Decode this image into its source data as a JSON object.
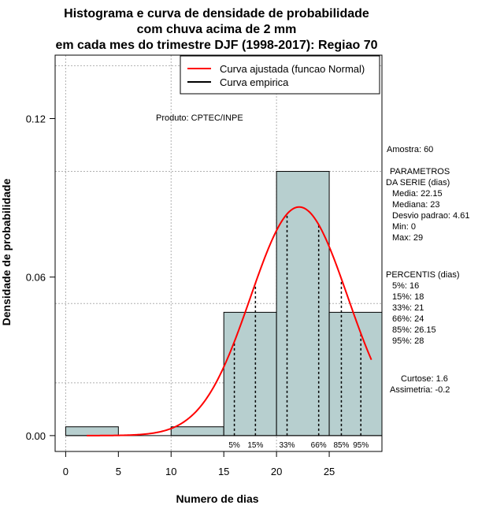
{
  "chart_data": {
    "type": "bar",
    "title": [
      "Histograma e curva de densidade de probabilidade",
      "com chuva acima de 2 mm",
      "em cada mes do trimestre DJF (1998-2017): Regiao 70"
    ],
    "xlabel": "Numero de dias",
    "ylabel": "Densidade de probabilidade",
    "xlim": [
      -1,
      30
    ],
    "ylim": [
      -0.006,
      0.144
    ],
    "xticks": [
      0,
      5,
      10,
      15,
      20,
      25
    ],
    "yticks": [
      0.0,
      0.06,
      0.12
    ],
    "ytick_labels": [
      "0.00",
      "0.06",
      "0.12"
    ],
    "grid_y": [
      0.02,
      0.05,
      0.1,
      0.14
    ],
    "grid_x": [
      0,
      10,
      20,
      30
    ],
    "bins": [
      {
        "x0": 0,
        "x1": 5,
        "density": 0.003333
      },
      {
        "x0": 5,
        "x1": 10,
        "density": 0.0
      },
      {
        "x0": 10,
        "x1": 15,
        "density": 0.003333
      },
      {
        "x0": 15,
        "x1": 20,
        "density": 0.046667
      },
      {
        "x0": 20,
        "x1": 25,
        "density": 0.1
      },
      {
        "x0": 25,
        "x1": 30,
        "density": 0.046667
      }
    ],
    "normal_curve": {
      "mean": 22.15,
      "sd": 4.61,
      "x_from": 2,
      "x_to": 29
    },
    "percentile_lines": [
      {
        "x": 16,
        "label": "5%"
      },
      {
        "x": 18,
        "label": "15%"
      },
      {
        "x": 21,
        "label": "33%"
      },
      {
        "x": 24,
        "label": "66%"
      },
      {
        "x": 26.15,
        "label": "85%"
      },
      {
        "x": 28,
        "label": "95%"
      }
    ],
    "legend": [
      {
        "label": "Curva ajustada (funcao Normal)",
        "color": "#ff0000"
      },
      {
        "label": "Curva empirica",
        "color": "#000000"
      }
    ],
    "legend_position": "top-right"
  },
  "annotation": "Produto: CPTEC/INPE",
  "stats": {
    "amostra": "Amostra: 60",
    "param_title_1": "PARAMETROS",
    "param_title_2": "DA SERIE (dias)",
    "params": [
      "Media: 22.15",
      "Mediana: 23",
      "Desvio padrao: 4.61",
      "Min: 0",
      "Max: 29"
    ],
    "percentis_title": "PERCENTIS (dias)",
    "percentis": [
      "5%: 16",
      "15%: 18",
      "33%: 21",
      "66%: 24",
      "85%: 26.15",
      "95%: 28"
    ],
    "curtose": "Curtose: 1.6",
    "assimetria": "Assimetria: -0.2"
  },
  "colors": {
    "bar_fill": "#b7cfcf",
    "curve": "#ff0000",
    "grid": "#b0b0b0"
  }
}
